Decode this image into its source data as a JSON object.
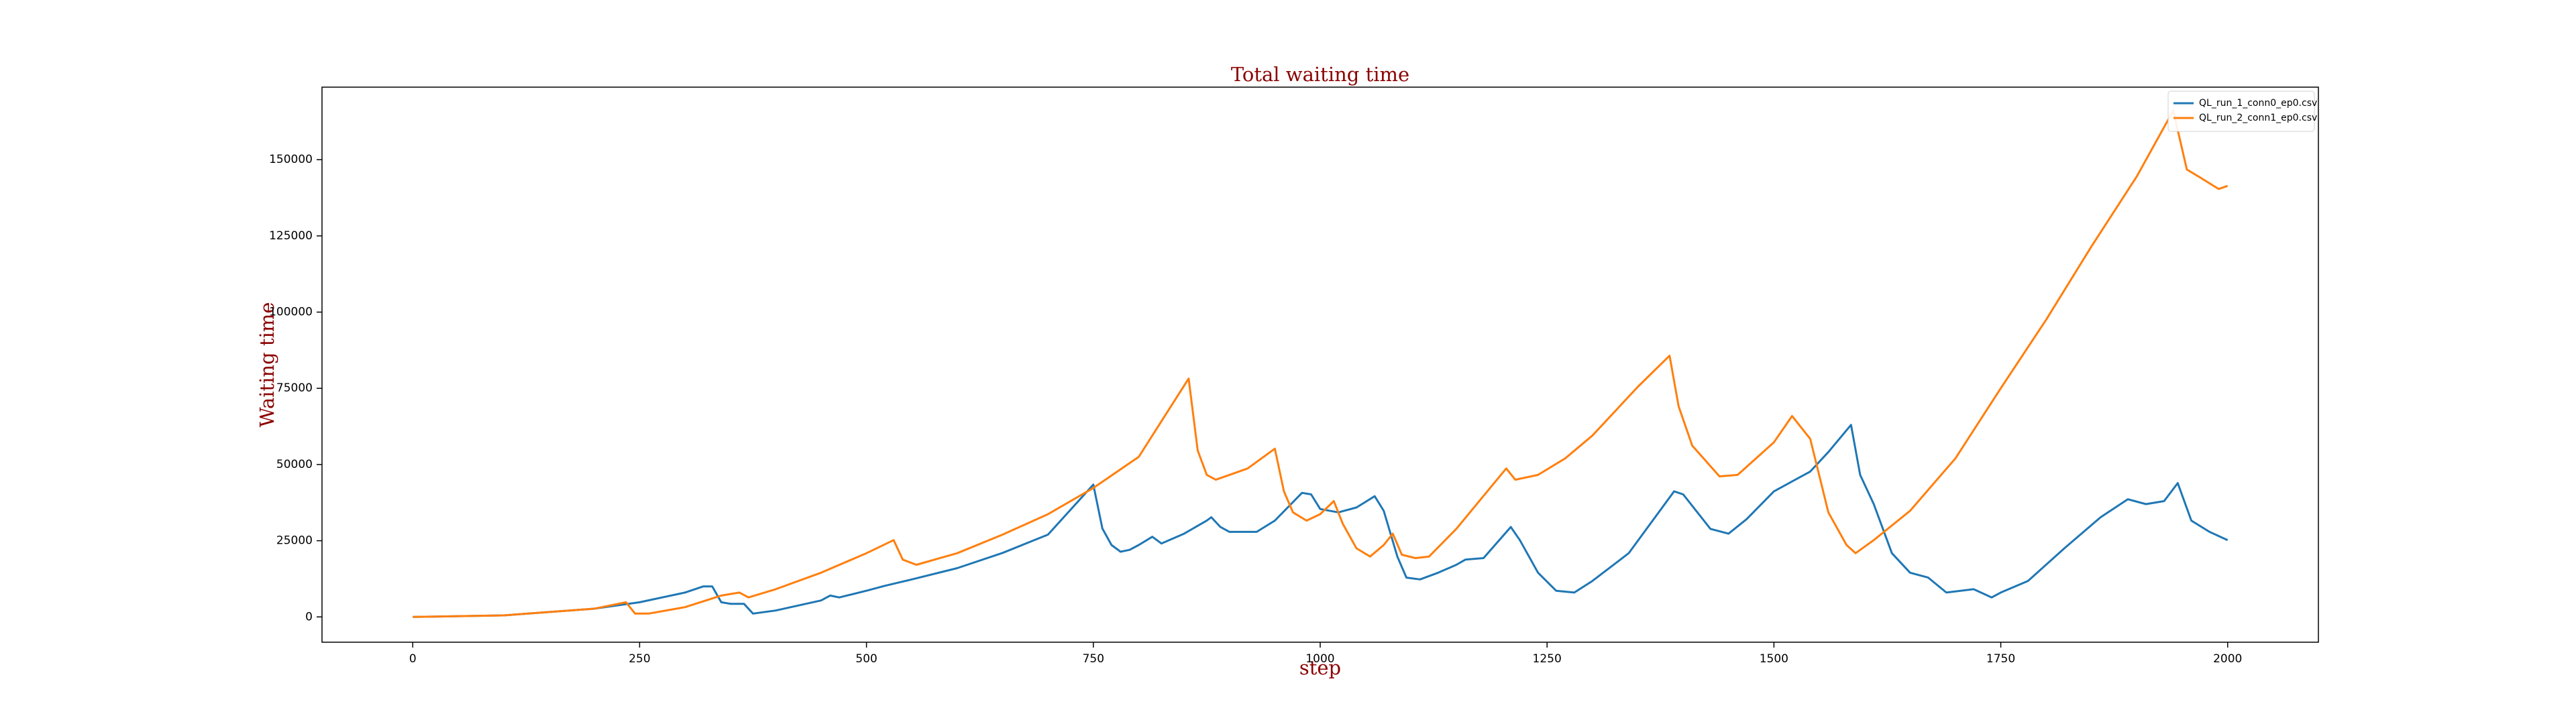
{
  "chart_data": {
    "type": "line",
    "title": "Total waiting time",
    "x_label": "step",
    "y_label": "Waiting time",
    "xlim": [
      -100,
      2100
    ],
    "ylim": [
      -8300,
      173800
    ],
    "xticks": [
      0,
      250,
      500,
      750,
      1000,
      1250,
      1500,
      1750,
      2000
    ],
    "yticks": [
      0,
      25000,
      50000,
      75000,
      100000,
      125000,
      150000
    ],
    "legend": "upper right",
    "series": [
      {
        "name": "QL_run_1_conn0_ep0.csv",
        "color": "#1f77b4",
        "x": [
          0,
          100,
          200,
          250,
          300,
          320,
          330,
          340,
          350,
          365,
          375,
          400,
          450,
          460,
          470,
          500,
          520,
          550,
          600,
          650,
          700,
          750,
          760,
          770,
          780,
          790,
          800,
          815,
          825,
          850,
          875,
          880,
          890,
          900,
          930,
          950,
          980,
          990,
          1000,
          1020,
          1040,
          1060,
          1070,
          1085,
          1095,
          1110,
          1130,
          1150,
          1160,
          1180,
          1210,
          1220,
          1240,
          1260,
          1280,
          1300,
          1340,
          1390,
          1400,
          1430,
          1450,
          1470,
          1500,
          1540,
          1560,
          1585,
          1595,
          1610,
          1630,
          1650,
          1670,
          1690,
          1720,
          1740,
          1750,
          1780,
          1820,
          1860,
          1890,
          1910,
          1930,
          1945,
          1960,
          1980,
          2000
        ],
        "values": [
          0,
          500,
          2700,
          4800,
          8000,
          10000,
          10000,
          4800,
          4300,
          4300,
          1100,
          2100,
          5400,
          7000,
          6400,
          8600,
          10200,
          12300,
          16000,
          21000,
          27000,
          43400,
          29000,
          23600,
          21400,
          22000,
          23600,
          26300,
          24100,
          27300,
          31600,
          32700,
          29500,
          27900,
          27900,
          31600,
          40700,
          40200,
          35400,
          34300,
          35900,
          39600,
          34800,
          19800,
          12900,
          12300,
          14500,
          17100,
          18800,
          19300,
          29500,
          25200,
          14500,
          8600,
          8000,
          11800,
          20900,
          41200,
          40200,
          28900,
          27300,
          32100,
          41200,
          47700,
          54100,
          63000,
          46600,
          37000,
          20900,
          14500,
          12900,
          8000,
          9100,
          6400,
          8000,
          11800,
          22500,
          32700,
          38600,
          37000,
          38000,
          43900,
          31600,
          27900,
          25200
        ]
      },
      {
        "name": "QL_run_2_conn1_ep0.csv",
        "color": "#ff7f0e",
        "x": [
          0,
          100,
          200,
          235,
          245,
          260,
          300,
          340,
          360,
          370,
          400,
          450,
          500,
          530,
          540,
          555,
          600,
          650,
          700,
          750,
          800,
          855,
          865,
          875,
          885,
          900,
          920,
          950,
          960,
          970,
          985,
          1000,
          1015,
          1025,
          1040,
          1055,
          1070,
          1080,
          1090,
          1105,
          1120,
          1150,
          1205,
          1215,
          1240,
          1270,
          1300,
          1350,
          1385,
          1395,
          1410,
          1440,
          1460,
          1500,
          1520,
          1540,
          1560,
          1580,
          1590,
          1610,
          1650,
          1700,
          1750,
          1800,
          1850,
          1900,
          1940,
          1955,
          1970,
          1990,
          2000
        ],
        "values": [
          0,
          500,
          2700,
          4800,
          1100,
          1100,
          3200,
          7000,
          8000,
          6400,
          9100,
          14500,
          20900,
          25200,
          18800,
          17100,
          20900,
          27000,
          33700,
          42300,
          52500,
          78200,
          54600,
          46600,
          45000,
          46600,
          48700,
          55200,
          41200,
          34300,
          31600,
          33700,
          38000,
          30500,
          22500,
          19800,
          23600,
          27300,
          20400,
          19300,
          19800,
          28900,
          48700,
          45000,
          46600,
          52000,
          59500,
          75500,
          85700,
          69100,
          56200,
          46100,
          46600,
          57300,
          65900,
          58400,
          34300,
          23600,
          20900,
          25200,
          34800,
          52000,
          75000,
          97500,
          121600,
          144600,
          166100,
          146800,
          144100,
          140400,
          141400
        ]
      }
    ]
  }
}
